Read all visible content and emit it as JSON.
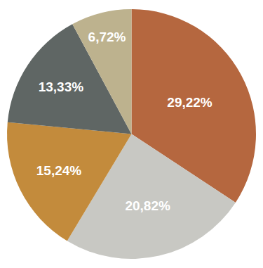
{
  "chart_data": {
    "type": "pie",
    "values": [
      29.22,
      20.82,
      15.24,
      13.33,
      6.72
    ],
    "value_labels": [
      "29,22%",
      "20,82%",
      "15,24%",
      "13,33%",
      "6,72%"
    ],
    "colors": [
      "#b5673f",
      "#c8c8c3",
      "#c38b3c",
      "#5f6664",
      "#bdb28e"
    ],
    "data_labels": true
  }
}
